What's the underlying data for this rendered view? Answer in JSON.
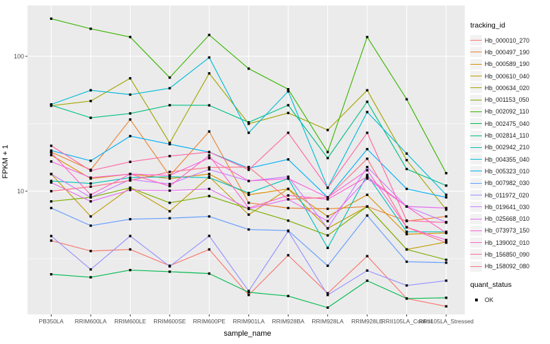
{
  "figure": {
    "background": "#FFFFFF",
    "panel_background": "#EBEBEB",
    "grid_color": "#FFFFFF",
    "tick_color": "#333333",
    "axis_text_color": "#4D4D4D"
  },
  "chart_data": {
    "type": "line",
    "title": "",
    "xlabel": "sample_name",
    "ylabel": "FPKM + 1",
    "y_scale": "log10",
    "y_major_ticks": [
      10,
      100
    ],
    "y_minor_ticks": [
      3.162,
      31.623
    ],
    "ylim": [
      1.22,
      238
    ],
    "grid": true,
    "legend_position": "right",
    "legend_title": "tracking_id",
    "legend2_title": "quant_status",
    "legend2_items": [
      {
        "label": "OK",
        "marker": "black-square"
      }
    ],
    "point_marker": "black-square",
    "categories": [
      "PB350LA",
      "RRIM600LA",
      "RRIM600LE",
      "RRIM600SE",
      "RRIM600PE",
      "RRIM901LA",
      "RRIM928BA",
      "RRIM928LA",
      "RRIM928LE",
      "RRII105LA_Control",
      "RRII105LA_Stressed"
    ],
    "series": [
      {
        "name": "Hb_000010_270",
        "color": "#F8766D",
        "values": [
          4.3,
          3.6,
          3.7,
          2.8,
          3.7,
          1.7,
          3.35,
          1.75,
          3.3,
          1.6,
          1.4
        ]
      },
      {
        "name": "Hb_000497_190",
        "color": "#EA8331",
        "values": [
          19.5,
          14.4,
          34,
          13,
          27.7,
          8.2,
          7.5,
          7.4,
          7.7,
          6.0,
          6.5
        ]
      },
      {
        "name": "Hb_000589_190",
        "color": "#D89000",
        "values": [
          18.5,
          12.4,
          13.4,
          12.4,
          13.4,
          9.4,
          10.4,
          6.5,
          9.4,
          4.8,
          4.9
        ]
      },
      {
        "name": "Hb_000610_040",
        "color": "#C09B00",
        "values": [
          13.4,
          6.5,
          10.6,
          7.1,
          12.8,
          6.7,
          10.4,
          5.3,
          7.7,
          3.7,
          4.2
        ]
      },
      {
        "name": "Hb_000634_020",
        "color": "#A3A500",
        "values": [
          43,
          46.6,
          68.7,
          22.8,
          74.7,
          31.6,
          38,
          28.4,
          56,
          17,
          7.3
        ]
      },
      {
        "name": "Hb_001153_050",
        "color": "#7CAE00",
        "values": [
          8.4,
          9.0,
          10.6,
          8.2,
          9.2,
          7.4,
          6.05,
          4.7,
          7.7,
          3.7,
          3.1
        ]
      },
      {
        "name": "Hb_002092_110",
        "color": "#39B600",
        "values": [
          190,
          160,
          139,
          69.5,
          144,
          81,
          57,
          19.5,
          139,
          48,
          13.6
        ]
      },
      {
        "name": "Hb_002475_040",
        "color": "#00BB4E",
        "values": [
          2.42,
          2.3,
          2.6,
          2.53,
          2.45,
          1.78,
          1.67,
          1.37,
          2.17,
          1.6,
          1.62
        ]
      },
      {
        "name": "Hb_002814_110",
        "color": "#00C087",
        "values": [
          43.4,
          35,
          37.7,
          43.4,
          43.3,
          32.4,
          43.4,
          17.6,
          46,
          14.6,
          11
        ]
      },
      {
        "name": "Hb_002942_210",
        "color": "#00C0B8",
        "values": [
          11.9,
          11.4,
          12.6,
          12.8,
          12.6,
          9.7,
          12.4,
          3.8,
          13.2,
          5.0,
          5.0
        ]
      },
      {
        "name": "Hb_004355_040",
        "color": "#00BCD8",
        "values": [
          44,
          56,
          52,
          58,
          98,
          27.1,
          55,
          10.6,
          38.6,
          19,
          9.4
        ]
      },
      {
        "name": "Hb_005323_010",
        "color": "#00B0F6",
        "values": [
          20,
          16.8,
          25.6,
          22.3,
          19.5,
          14.8,
          17.2,
          9.0,
          20.5,
          10.4,
          9.0
        ]
      },
      {
        "name": "Hb_007982_030",
        "color": "#619CFF",
        "values": [
          7.5,
          5.55,
          6.2,
          6.3,
          6.5,
          5.2,
          5.1,
          2.8,
          6.6,
          3.0,
          2.95
        ]
      },
      {
        "name": "Hb_011972_020",
        "color": "#9590FF",
        "values": [
          4.65,
          2.63,
          4.65,
          2.77,
          4.66,
          1.82,
          5.05,
          1.7,
          2.58,
          2.0,
          2.17
        ]
      },
      {
        "name": "Hb_019641_030",
        "color": "#C77CFF",
        "values": [
          13.4,
          9.0,
          12.2,
          11.3,
          14.5,
          11.9,
          12.8,
          5.3,
          15.1,
          7.7,
          5.9
        ]
      },
      {
        "name": "Hb_025668_010",
        "color": "#E76BF3",
        "values": [
          11.6,
          8.4,
          10.2,
          10.1,
          10.4,
          7.4,
          8.7,
          6.0,
          12.4,
          7.7,
          7.5
        ]
      },
      {
        "name": "Hb_073973_150",
        "color": "#FA62DB",
        "values": [
          16.6,
          12.6,
          13.4,
          13.1,
          17.6,
          11.9,
          12.4,
          9.0,
          14.3,
          5.4,
          4.35
        ]
      },
      {
        "name": "Hb_139002_010",
        "color": "#FF61C9",
        "values": [
          19.3,
          9.4,
          13.4,
          10.9,
          18.4,
          7.5,
          9.3,
          8.7,
          12.8,
          7.7,
          4.9
        ]
      },
      {
        "name": "Hb_156850_090",
        "color": "#FF67A4",
        "values": [
          21.7,
          14.2,
          16.5,
          18.2,
          19.5,
          14.4,
          27.1,
          10.6,
          27.1,
          6.05,
          5.85
        ]
      },
      {
        "name": "Hb_158092_080",
        "color": "#FD7083",
        "values": [
          10,
          10.8,
          12.0,
          13.9,
          15.0,
          15.1,
          8.7,
          9.0,
          17.4,
          5.4,
          4.15
        ]
      }
    ]
  }
}
